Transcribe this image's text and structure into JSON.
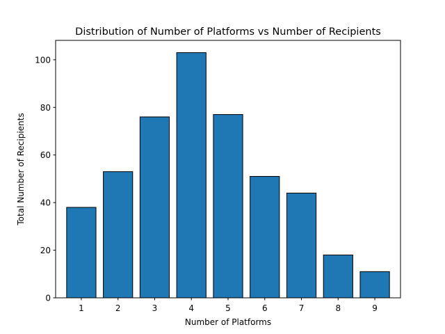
{
  "chart_data": {
    "type": "bar",
    "title": "Distribution of Number of Platforms vs Number of Recipients",
    "xlabel": "Number of Platforms",
    "ylabel": "Total Number of Recipients",
    "categories": [
      "1",
      "2",
      "3",
      "4",
      "5",
      "6",
      "7",
      "8",
      "9"
    ],
    "values": [
      38,
      53,
      76,
      103,
      77,
      51,
      44,
      18,
      11
    ],
    "xlim": [
      0.3,
      9.7
    ],
    "ylim": [
      0,
      108.15
    ],
    "yticks": [
      0,
      20,
      40,
      60,
      80,
      100
    ],
    "xticks": [
      1,
      2,
      3,
      4,
      5,
      6,
      7,
      8,
      9
    ],
    "bar_color": "#1f77b4",
    "bar_edge_color": "#000000",
    "grid": false,
    "legend": false
  }
}
